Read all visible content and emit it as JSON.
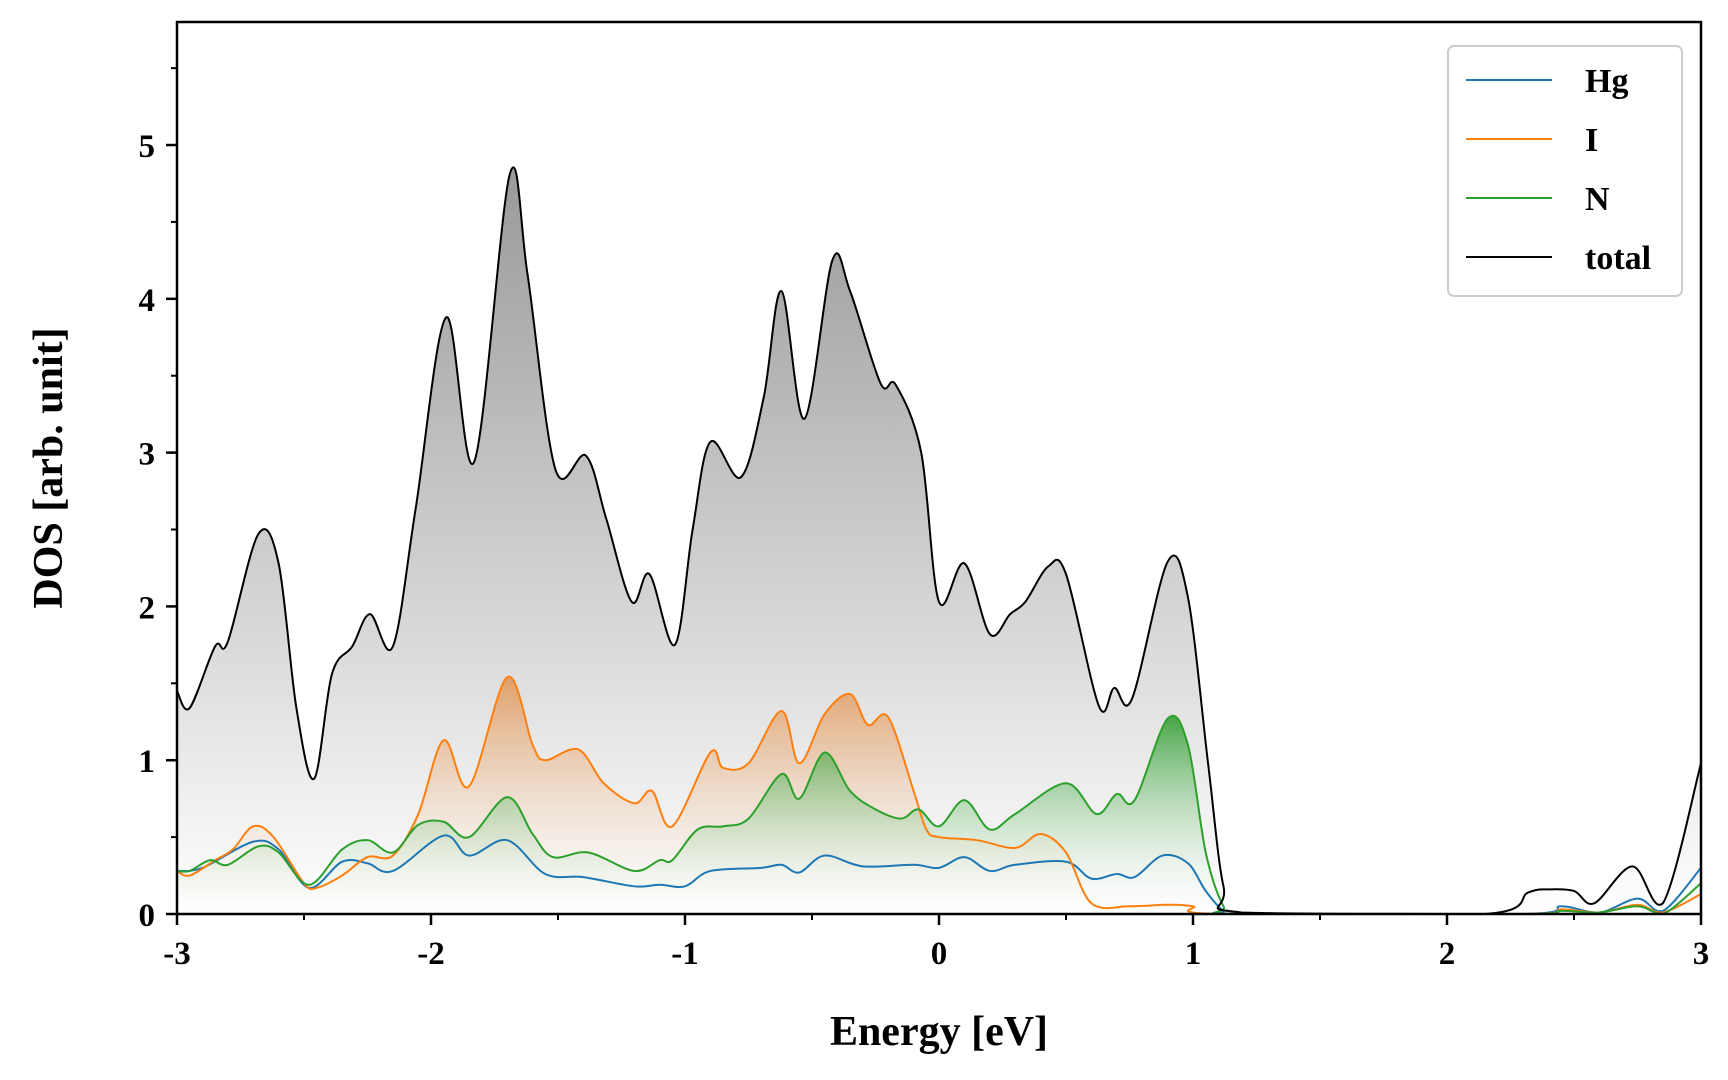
{
  "chart_data": {
    "type": "line",
    "title": "",
    "xlabel": "Energy [eV]",
    "ylabel": "DOS [arb. unit]",
    "xlim": [
      -3,
      3
    ],
    "ylim": [
      0,
      5.8
    ],
    "xticks": [
      -3,
      -2,
      -1,
      0,
      1,
      2,
      3
    ],
    "xtick_labels": [
      "-3",
      "-2",
      "-1",
      "0",
      "1",
      "2",
      "3"
    ],
    "yticks": [
      0,
      1,
      2,
      3,
      4,
      5
    ],
    "ytick_labels": [
      "0",
      "1",
      "2",
      "3",
      "4",
      "5"
    ],
    "grid": false,
    "legend_position": "top-right",
    "series": [
      {
        "name": "Hg",
        "color": "#1f77b4",
        "filled": false,
        "points": [
          [
            -3,
            0.28
          ],
          [
            -2.9,
            0.3
          ],
          [
            -2.7,
            0.47
          ],
          [
            -2.6,
            0.42
          ],
          [
            -2.48,
            0.17
          ],
          [
            -2.35,
            0.34
          ],
          [
            -2.25,
            0.33
          ],
          [
            -2.15,
            0.28
          ],
          [
            -1.95,
            0.51
          ],
          [
            -1.85,
            0.38
          ],
          [
            -1.7,
            0.48
          ],
          [
            -1.55,
            0.26
          ],
          [
            -1.4,
            0.24
          ],
          [
            -1.2,
            0.18
          ],
          [
            -1.1,
            0.19
          ],
          [
            -1.0,
            0.18
          ],
          [
            -0.9,
            0.28
          ],
          [
            -0.7,
            0.3
          ],
          [
            -0.62,
            0.32
          ],
          [
            -0.55,
            0.27
          ],
          [
            -0.45,
            0.38
          ],
          [
            -0.3,
            0.31
          ],
          [
            -0.1,
            0.32
          ],
          [
            0,
            0.3
          ],
          [
            0.1,
            0.37
          ],
          [
            0.2,
            0.28
          ],
          [
            0.3,
            0.32
          ],
          [
            0.5,
            0.34
          ],
          [
            0.6,
            0.23
          ],
          [
            0.7,
            0.26
          ],
          [
            0.77,
            0.24
          ],
          [
            0.88,
            0.38
          ],
          [
            0.98,
            0.33
          ],
          [
            1.05,
            0.15
          ],
          [
            1.12,
            0.02
          ],
          [
            1.18,
            0
          ],
          [
            2.3,
            0
          ],
          [
            2.45,
            0.05
          ],
          [
            2.6,
            0.01
          ],
          [
            2.75,
            0.1
          ],
          [
            2.85,
            0.02
          ],
          [
            3,
            0.3
          ]
        ]
      },
      {
        "name": "I",
        "color": "#ff7f0e",
        "filled": true,
        "points": [
          [
            -3,
            0.28
          ],
          [
            -2.95,
            0.25
          ],
          [
            -2.85,
            0.35
          ],
          [
            -2.78,
            0.42
          ],
          [
            -2.7,
            0.57
          ],
          [
            -2.62,
            0.5
          ],
          [
            -2.5,
            0.2
          ],
          [
            -2.45,
            0.17
          ],
          [
            -2.35,
            0.25
          ],
          [
            -2.25,
            0.37
          ],
          [
            -2.15,
            0.38
          ],
          [
            -2.05,
            0.65
          ],
          [
            -1.95,
            1.13
          ],
          [
            -1.85,
            0.83
          ],
          [
            -1.7,
            1.54
          ],
          [
            -1.6,
            1.1
          ],
          [
            -1.55,
            1.0
          ],
          [
            -1.42,
            1.07
          ],
          [
            -1.32,
            0.85
          ],
          [
            -1.2,
            0.72
          ],
          [
            -1.13,
            0.8
          ],
          [
            -1.05,
            0.57
          ],
          [
            -0.9,
            1.05
          ],
          [
            -0.85,
            0.95
          ],
          [
            -0.75,
            0.98
          ],
          [
            -0.62,
            1.32
          ],
          [
            -0.55,
            0.98
          ],
          [
            -0.45,
            1.3
          ],
          [
            -0.35,
            1.43
          ],
          [
            -0.28,
            1.23
          ],
          [
            -0.2,
            1.28
          ],
          [
            -0.1,
            0.8
          ],
          [
            -0.05,
            0.55
          ],
          [
            0,
            0.5
          ],
          [
            0.15,
            0.48
          ],
          [
            0.3,
            0.43
          ],
          [
            0.4,
            0.52
          ],
          [
            0.5,
            0.4
          ],
          [
            0.6,
            0.07
          ],
          [
            0.75,
            0.05
          ],
          [
            0.9,
            0.06
          ],
          [
            1.0,
            0.05
          ],
          [
            1.1,
            0
          ],
          [
            2.3,
            0
          ],
          [
            2.45,
            0.03
          ],
          [
            2.6,
            0.01
          ],
          [
            2.75,
            0.06
          ],
          [
            2.85,
            0.01
          ],
          [
            3,
            0.13
          ]
        ]
      },
      {
        "name": "N",
        "color": "#2ca02c",
        "filled": true,
        "points": [
          [
            -3,
            0.28
          ],
          [
            -2.95,
            0.28
          ],
          [
            -2.87,
            0.35
          ],
          [
            -2.8,
            0.32
          ],
          [
            -2.68,
            0.44
          ],
          [
            -2.6,
            0.4
          ],
          [
            -2.48,
            0.19
          ],
          [
            -2.35,
            0.42
          ],
          [
            -2.25,
            0.48
          ],
          [
            -2.15,
            0.4
          ],
          [
            -2.05,
            0.58
          ],
          [
            -1.95,
            0.6
          ],
          [
            -1.85,
            0.5
          ],
          [
            -1.7,
            0.76
          ],
          [
            -1.6,
            0.52
          ],
          [
            -1.52,
            0.37
          ],
          [
            -1.38,
            0.4
          ],
          [
            -1.2,
            0.28
          ],
          [
            -1.1,
            0.35
          ],
          [
            -1.05,
            0.35
          ],
          [
            -0.95,
            0.55
          ],
          [
            -0.85,
            0.57
          ],
          [
            -0.75,
            0.62
          ],
          [
            -0.62,
            0.91
          ],
          [
            -0.55,
            0.75
          ],
          [
            -0.45,
            1.05
          ],
          [
            -0.35,
            0.8
          ],
          [
            -0.25,
            0.68
          ],
          [
            -0.15,
            0.62
          ],
          [
            -0.08,
            0.68
          ],
          [
            0,
            0.57
          ],
          [
            0.1,
            0.74
          ],
          [
            0.2,
            0.55
          ],
          [
            0.3,
            0.65
          ],
          [
            0.5,
            0.85
          ],
          [
            0.62,
            0.65
          ],
          [
            0.7,
            0.78
          ],
          [
            0.77,
            0.74
          ],
          [
            0.9,
            1.27
          ],
          [
            0.98,
            1.1
          ],
          [
            1.05,
            0.4
          ],
          [
            1.12,
            0.05
          ],
          [
            1.18,
            0
          ],
          [
            2.3,
            0
          ],
          [
            2.45,
            0.02
          ],
          [
            2.6,
            0.01
          ],
          [
            2.75,
            0.05
          ],
          [
            2.85,
            0
          ],
          [
            3,
            0.2
          ]
        ]
      },
      {
        "name": "total",
        "color": "#000000",
        "filled": true,
        "points": [
          [
            -3,
            1.45
          ],
          [
            -2.95,
            1.34
          ],
          [
            -2.85,
            1.74
          ],
          [
            -2.8,
            1.77
          ],
          [
            -2.68,
            2.47
          ],
          [
            -2.6,
            2.28
          ],
          [
            -2.53,
            1.34
          ],
          [
            -2.46,
            0.88
          ],
          [
            -2.39,
            1.56
          ],
          [
            -2.31,
            1.74
          ],
          [
            -2.24,
            1.95
          ],
          [
            -2.15,
            1.74
          ],
          [
            -2.06,
            2.64
          ],
          [
            -1.94,
            3.88
          ],
          [
            -1.83,
            2.94
          ],
          [
            -1.69,
            4.81
          ],
          [
            -1.62,
            4.16
          ],
          [
            -1.51,
            2.89
          ],
          [
            -1.39,
            2.98
          ],
          [
            -1.31,
            2.57
          ],
          [
            -1.21,
            2.03
          ],
          [
            -1.14,
            2.21
          ],
          [
            -1.04,
            1.75
          ],
          [
            -0.97,
            2.5
          ],
          [
            -0.9,
            3.07
          ],
          [
            -0.78,
            2.84
          ],
          [
            -0.69,
            3.36
          ],
          [
            -0.62,
            4.05
          ],
          [
            -0.53,
            3.22
          ],
          [
            -0.42,
            4.25
          ],
          [
            -0.35,
            4.05
          ],
          [
            -0.23,
            3.45
          ],
          [
            -0.17,
            3.44
          ],
          [
            -0.07,
            3.0
          ],
          [
            0,
            2.03
          ],
          [
            0.1,
            2.28
          ],
          [
            0.2,
            1.82
          ],
          [
            0.28,
            1.95
          ],
          [
            0.34,
            2.03
          ],
          [
            0.43,
            2.26
          ],
          [
            0.5,
            2.21
          ],
          [
            0.63,
            1.35
          ],
          [
            0.69,
            1.47
          ],
          [
            0.76,
            1.4
          ],
          [
            0.9,
            2.29
          ],
          [
            0.98,
            2.06
          ],
          [
            1.06,
            0.97
          ],
          [
            1.12,
            0.18
          ],
          [
            1.19,
            0.01
          ],
          [
            2.15,
            0
          ],
          [
            2.32,
            0.14
          ],
          [
            2.4,
            0.16
          ],
          [
            2.5,
            0.15
          ],
          [
            2.58,
            0.07
          ],
          [
            2.73,
            0.31
          ],
          [
            2.85,
            0.07
          ],
          [
            3,
            0.98
          ]
        ]
      }
    ]
  }
}
